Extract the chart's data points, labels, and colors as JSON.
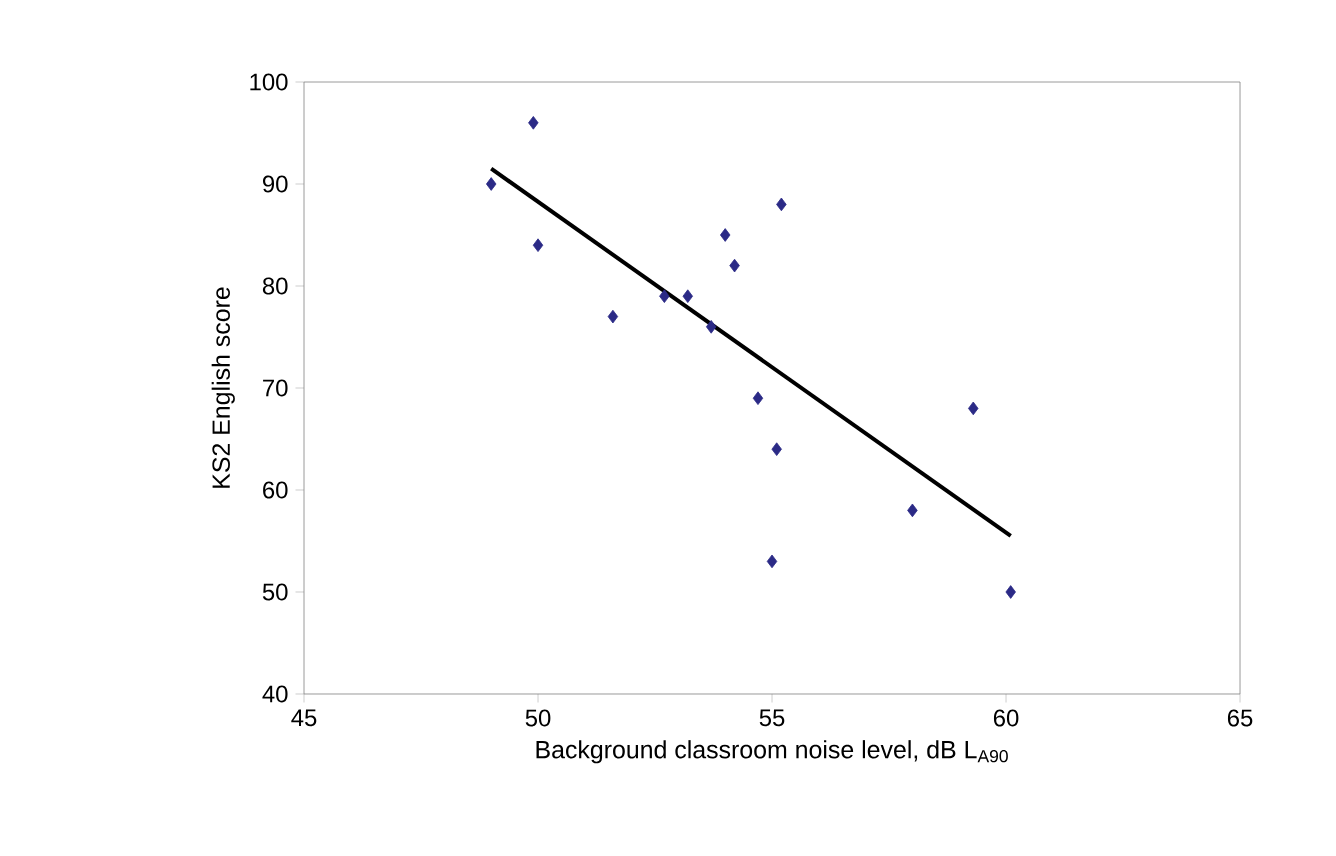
{
  "chart_data": {
    "type": "scatter",
    "xlabel": "Background classroom noise level, dB L$_{A90}$",
    "ylabel": "KS2 English score",
    "xlim": [
      45,
      65
    ],
    "ylim": [
      40,
      100
    ],
    "xticks": [
      45,
      50,
      55,
      60,
      65
    ],
    "yticks": [
      40,
      50,
      60,
      70,
      80,
      90,
      100
    ],
    "grid": false,
    "series": [
      {
        "marker": "diamond",
        "color": "#2b2a86",
        "x": [
          49.0,
          49.9,
          50.0,
          51.6,
          52.7,
          53.2,
          53.7,
          54.0,
          54.2,
          54.7,
          55.1,
          55.0,
          55.2,
          58.0,
          59.3,
          60.1
        ],
        "values": [
          90,
          96,
          84,
          77,
          79,
          79,
          76,
          85,
          82,
          69,
          64,
          53,
          88,
          58,
          68,
          50
        ]
      },
      {
        "type": "line",
        "marker": "none",
        "color": "#000000",
        "x": [
          49.0,
          60.1
        ],
        "values": [
          91.5,
          55.5
        ]
      }
    ]
  }
}
